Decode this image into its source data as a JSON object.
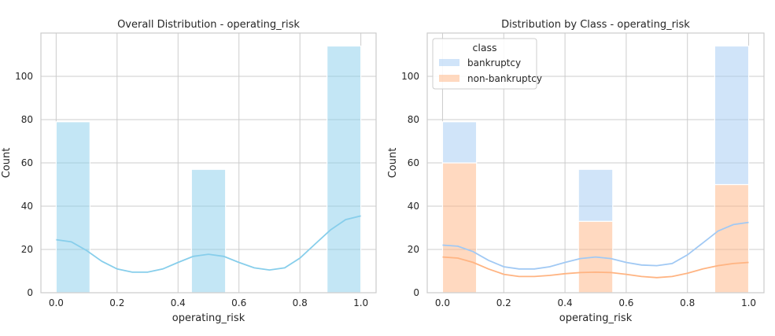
{
  "chart_data": [
    {
      "type": "histogram",
      "title": "Overall Distribution - operating_risk",
      "xlabel": "operating_risk",
      "ylabel": "Count",
      "xlim": [
        -0.05,
        1.05
      ],
      "ylim": [
        0,
        120
      ],
      "xticks": [
        0.0,
        0.2,
        0.4,
        0.6,
        0.8,
        1.0
      ],
      "xtick_labels": [
        "0.0",
        "0.2",
        "0.4",
        "0.6",
        "0.8",
        "1.0"
      ],
      "yticks": [
        0,
        20,
        40,
        60,
        80,
        100
      ],
      "grid": true,
      "bars": [
        {
          "x0": 0.0,
          "x1": 0.111,
          "value": 79
        },
        {
          "x0": 0.444,
          "x1": 0.556,
          "value": 57
        },
        {
          "x0": 0.889,
          "x1": 1.0,
          "value": 114
        }
      ],
      "kde": {
        "x": [
          0.0,
          0.05,
          0.1,
          0.15,
          0.2,
          0.25,
          0.3,
          0.35,
          0.4,
          0.45,
          0.5,
          0.55,
          0.6,
          0.65,
          0.7,
          0.75,
          0.8,
          0.85,
          0.9,
          0.95,
          1.0
        ],
        "y": [
          24.5,
          23.5,
          19.5,
          14.5,
          11,
          9.5,
          9.5,
          11,
          14,
          16.8,
          17.8,
          16.8,
          14,
          11.5,
          10.5,
          11.5,
          16,
          22.5,
          29,
          33.8,
          35.5
        ]
      },
      "colors": {
        "bar": "#87ceeb",
        "kde": "#87ceeb"
      }
    },
    {
      "type": "stacked-histogram",
      "title": "Distribution by Class - operating_risk",
      "xlabel": "operating_risk",
      "ylabel": "Count",
      "xlim": [
        -0.05,
        1.05
      ],
      "ylim": [
        0,
        120
      ],
      "xticks": [
        0.0,
        0.2,
        0.4,
        0.6,
        0.8,
        1.0
      ],
      "xtick_labels": [
        "0.0",
        "0.2",
        "0.4",
        "0.6",
        "0.8",
        "1.0"
      ],
      "yticks": [
        0,
        20,
        40,
        60,
        80,
        100
      ],
      "grid": true,
      "legend": {
        "title": "class",
        "position": "upper-left",
        "entries": [
          "bankruptcy",
          "non-bankruptcy"
        ]
      },
      "bins": [
        {
          "x0": 0.0,
          "x1": 0.111
        },
        {
          "x0": 0.444,
          "x1": 0.556
        },
        {
          "x0": 0.889,
          "x1": 1.0
        }
      ],
      "series": [
        {
          "name": "non-bankruptcy",
          "values": [
            60,
            33,
            50
          ],
          "color": "#ffb482"
        },
        {
          "name": "bankruptcy",
          "values": [
            19,
            24,
            64
          ],
          "color": "#a1c9f4"
        }
      ],
      "kde": [
        {
          "name": "bankruptcy",
          "color": "#a1c9f4",
          "x": [
            0.0,
            0.05,
            0.1,
            0.15,
            0.2,
            0.25,
            0.3,
            0.35,
            0.4,
            0.45,
            0.5,
            0.55,
            0.6,
            0.65,
            0.7,
            0.75,
            0.8,
            0.85,
            0.9,
            0.95,
            1.0
          ],
          "y": [
            22,
            21.5,
            19,
            15,
            12,
            11,
            11,
            12,
            14,
            15.8,
            16.5,
            15.8,
            14,
            12.8,
            12.5,
            13.5,
            17.5,
            23,
            28.5,
            31.5,
            32.5
          ]
        },
        {
          "name": "non-bankruptcy",
          "color": "#ffb482",
          "x": [
            0.0,
            0.05,
            0.1,
            0.15,
            0.2,
            0.25,
            0.3,
            0.35,
            0.4,
            0.45,
            0.5,
            0.55,
            0.6,
            0.65,
            0.7,
            0.75,
            0.8,
            0.85,
            0.9,
            0.95,
            1.0
          ],
          "y": [
            16.5,
            16,
            14,
            11,
            8.5,
            7.5,
            7.5,
            8,
            8.8,
            9.3,
            9.5,
            9.3,
            8.5,
            7.5,
            7,
            7.5,
            9,
            11,
            12.5,
            13.5,
            14
          ]
        }
      ]
    }
  ]
}
